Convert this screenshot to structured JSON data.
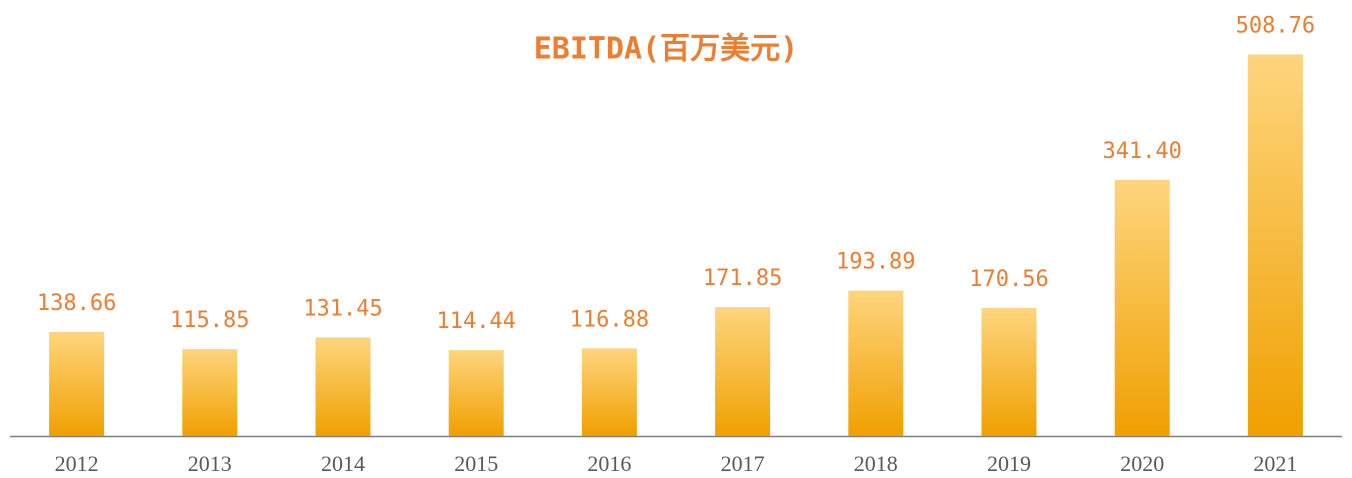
{
  "chart_data": {
    "type": "bar",
    "title": "EBITDA(百万美元)",
    "categories": [
      "2012",
      "2013",
      "2014",
      "2015",
      "2016",
      "2017",
      "2018",
      "2019",
      "2020",
      "2021"
    ],
    "values": [
      138.66,
      115.85,
      131.45,
      114.44,
      116.88,
      171.85,
      193.89,
      170.56,
      341.4,
      508.76
    ],
    "value_labels": [
      "138.66",
      "115.85",
      "131.45",
      "114.44",
      "116.88",
      "171.85",
      "193.89",
      "170.56",
      "341.40",
      "508.76"
    ],
    "color": "#f2a900",
    "label_color": "#ed7d31",
    "ylim": [
      0,
      520
    ]
  }
}
